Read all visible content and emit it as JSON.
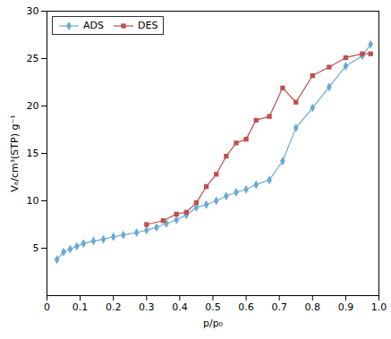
{
  "chart_data": {
    "type": "line",
    "xlabel": "p/p₀",
    "ylabel": "Vₐ/cm³(STP) g⁻¹",
    "series": [
      {
        "name": "ADS",
        "color": "#6aaad4",
        "marker": "diamond",
        "x": [
          0.03,
          0.05,
          0.07,
          0.09,
          0.11,
          0.14,
          0.17,
          0.2,
          0.23,
          0.27,
          0.3,
          0.33,
          0.36,
          0.39,
          0.42,
          0.45,
          0.48,
          0.51,
          0.54,
          0.57,
          0.6,
          0.63,
          0.67,
          0.71,
          0.75,
          0.8,
          0.85,
          0.9,
          0.95,
          0.975
        ],
        "values": [
          3.8,
          4.6,
          4.9,
          5.2,
          5.5,
          5.75,
          5.95,
          6.2,
          6.4,
          6.65,
          6.9,
          7.2,
          7.6,
          8.0,
          8.5,
          9.3,
          9.6,
          10.0,
          10.5,
          10.9,
          11.2,
          11.7,
          12.2,
          14.2,
          17.7,
          19.8,
          22.0,
          24.2,
          25.3,
          26.5
        ]
      },
      {
        "name": "DES",
        "color": "#c0504d",
        "marker": "square",
        "x": [
          0.3,
          0.35,
          0.39,
          0.42,
          0.45,
          0.48,
          0.51,
          0.54,
          0.57,
          0.6,
          0.63,
          0.67,
          0.71,
          0.75,
          0.8,
          0.85,
          0.9,
          0.95,
          0.975
        ],
        "values": [
          7.5,
          7.9,
          8.6,
          8.8,
          9.8,
          11.5,
          12.8,
          14.7,
          16.1,
          16.5,
          18.5,
          18.9,
          21.9,
          20.4,
          23.2,
          24.1,
          25.1,
          25.5,
          25.5
        ]
      }
    ],
    "xlim": [
      0,
      1.0
    ],
    "ylim": [
      0,
      30
    ],
    "xticks": [
      0,
      0.1,
      0.2,
      0.3,
      0.4,
      0.5,
      0.6,
      0.7,
      0.8,
      0.9,
      {
        "value": 1.0,
        "label": "1.0"
      }
    ],
    "yticks": [
      5,
      10,
      15,
      20,
      25,
      30
    ],
    "legend": "upper left",
    "grid": false
  }
}
